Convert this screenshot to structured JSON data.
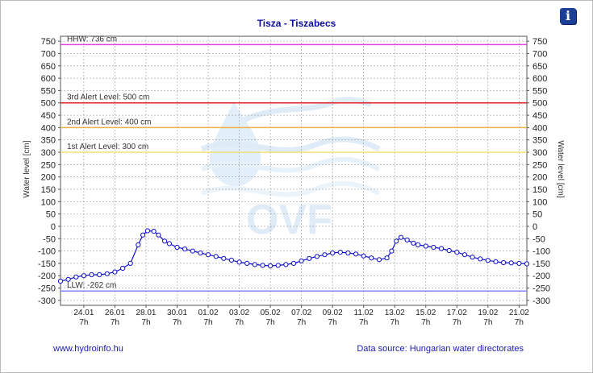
{
  "header": {
    "title": "Tisza - Tiszabecs",
    "info_icon": "info-icon"
  },
  "footer": {
    "left": "www.hydroinfo.hu",
    "right": "Data source: Hungarian water directorates"
  },
  "watermark": {
    "text": "OVF"
  },
  "chart_data": {
    "type": "line",
    "title": "Tisza - Tiszabecs",
    "ylabel": "Water level [cm]",
    "ylabel_right": "Water level [cm]",
    "ylim": [
      -320,
      770
    ],
    "yticks": [
      750,
      700,
      650,
      600,
      550,
      500,
      450,
      400,
      350,
      300,
      250,
      200,
      150,
      100,
      50,
      0,
      -50,
      -100,
      -150,
      -200,
      -250,
      -300
    ],
    "grid": true,
    "x_days_range": [
      0,
      30
    ],
    "xticks": [
      {
        "day": 1.5,
        "label": "24.01",
        "sub": "7h"
      },
      {
        "day": 3.5,
        "label": "26.01",
        "sub": "7h"
      },
      {
        "day": 5.5,
        "label": "28.01",
        "sub": "7h"
      },
      {
        "day": 7.5,
        "label": "30.01",
        "sub": "7h"
      },
      {
        "day": 9.5,
        "label": "01.02",
        "sub": "7h"
      },
      {
        "day": 11.5,
        "label": "03.02",
        "sub": "7h"
      },
      {
        "day": 13.5,
        "label": "05.02",
        "sub": "7h"
      },
      {
        "day": 15.5,
        "label": "07.02",
        "sub": "7h"
      },
      {
        "day": 17.5,
        "label": "09.02",
        "sub": "7h"
      },
      {
        "day": 19.5,
        "label": "11.02",
        "sub": "7h"
      },
      {
        "day": 21.5,
        "label": "13.02",
        "sub": "7h"
      },
      {
        "day": 23.5,
        "label": "15.02",
        "sub": "7h"
      },
      {
        "day": 25.5,
        "label": "17.02",
        "sub": "7h"
      },
      {
        "day": 27.5,
        "label": "19.02",
        "sub": "7h"
      },
      {
        "day": 29.5,
        "label": "21.02",
        "sub": "7h"
      }
    ],
    "levels": [
      {
        "label": "HHW: 736 cm",
        "value": 736,
        "color": "#e040e0"
      },
      {
        "label": "3rd Alert Level: 500 cm",
        "value": 500,
        "color": "#e02020"
      },
      {
        "label": "2nd Alert Level: 400 cm",
        "value": 400,
        "color": "#f0b040"
      },
      {
        "label": "1st Alert Level: 300 cm",
        "value": 300,
        "color": "#f0e070"
      },
      {
        "label": "LLW: -262 cm",
        "value": -262,
        "color": "#8080ff"
      }
    ],
    "series": [
      {
        "color": "#1010c8",
        "points": [
          [
            0,
            -222
          ],
          [
            0.5,
            -215
          ],
          [
            1,
            -205
          ],
          [
            1.5,
            -200
          ],
          [
            2,
            -196
          ],
          [
            2.5,
            -196
          ],
          [
            3,
            -192
          ],
          [
            3.5,
            -185
          ],
          [
            4,
            -170
          ],
          [
            4.5,
            -150
          ],
          [
            5,
            -75
          ],
          [
            5.3,
            -35
          ],
          [
            5.6,
            -18
          ],
          [
            6,
            -20
          ],
          [
            6.3,
            -35
          ],
          [
            6.7,
            -60
          ],
          [
            7,
            -70
          ],
          [
            7.5,
            -85
          ],
          [
            8,
            -92
          ],
          [
            8.5,
            -100
          ],
          [
            9,
            -108
          ],
          [
            9.5,
            -115
          ],
          [
            10,
            -122
          ],
          [
            10.5,
            -130
          ],
          [
            11,
            -137
          ],
          [
            11.5,
            -145
          ],
          [
            12,
            -150
          ],
          [
            12.5,
            -155
          ],
          [
            13,
            -158
          ],
          [
            13.5,
            -160
          ],
          [
            14,
            -158
          ],
          [
            14.5,
            -155
          ],
          [
            15,
            -150
          ],
          [
            15.5,
            -140
          ],
          [
            16,
            -130
          ],
          [
            16.5,
            -122
          ],
          [
            17,
            -115
          ],
          [
            17.5,
            -108
          ],
          [
            18,
            -105
          ],
          [
            18.5,
            -108
          ],
          [
            19,
            -112
          ],
          [
            19.5,
            -120
          ],
          [
            20,
            -128
          ],
          [
            20.5,
            -135
          ],
          [
            21,
            -128
          ],
          [
            21.3,
            -100
          ],
          [
            21.6,
            -60
          ],
          [
            21.9,
            -45
          ],
          [
            22.3,
            -55
          ],
          [
            22.7,
            -68
          ],
          [
            23,
            -75
          ],
          [
            23.5,
            -80
          ],
          [
            24,
            -85
          ],
          [
            24.5,
            -90
          ],
          [
            25,
            -98
          ],
          [
            25.5,
            -105
          ],
          [
            26,
            -115
          ],
          [
            26.5,
            -125
          ],
          [
            27,
            -132
          ],
          [
            27.5,
            -138
          ],
          [
            28,
            -143
          ],
          [
            28.5,
            -147
          ],
          [
            29,
            -148
          ],
          [
            29.5,
            -150
          ],
          [
            30,
            -152
          ]
        ]
      }
    ]
  }
}
